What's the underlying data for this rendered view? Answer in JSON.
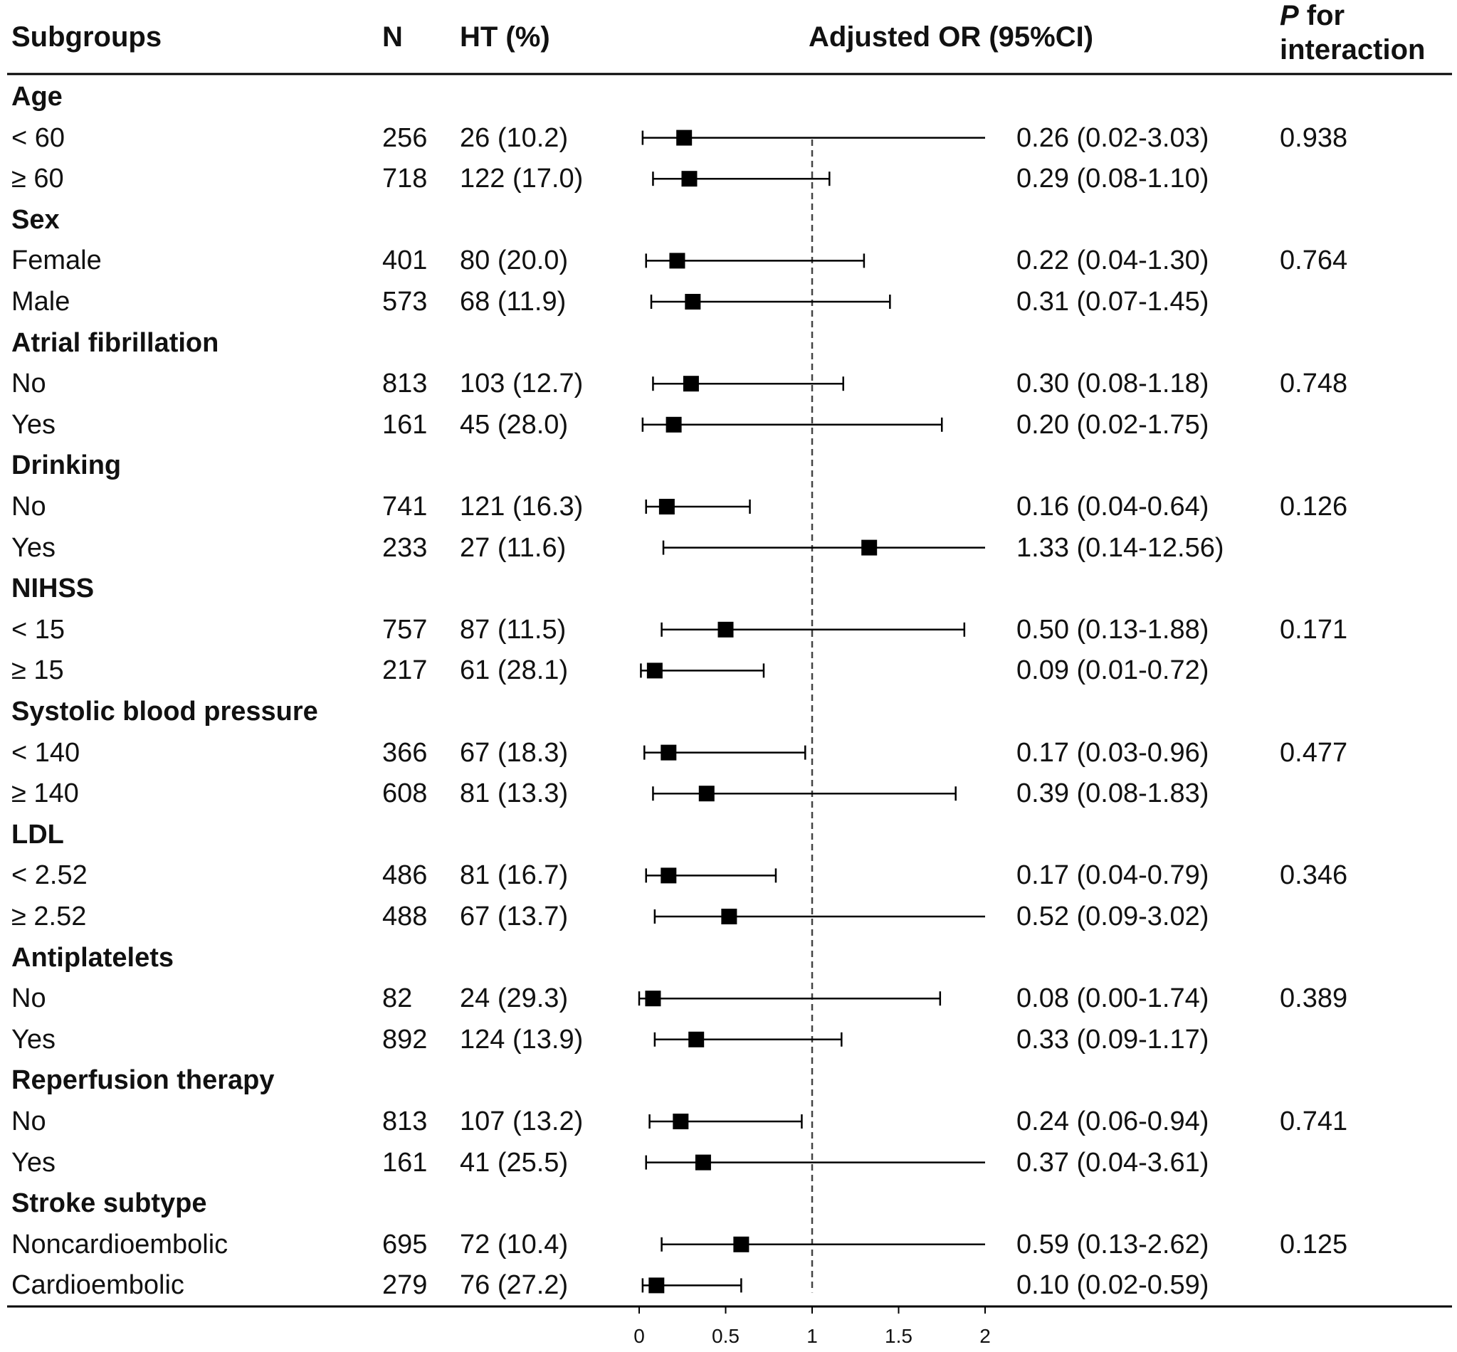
{
  "headers": {
    "subgroups": "Subgroups",
    "n": "N",
    "ht": "HT (%)",
    "or": "Adjusted OR (95%CI)",
    "p_italic": "P",
    "p_rest": " for",
    "p_line2": "interaction"
  },
  "chart_data": {
    "type": "forest",
    "xlim": [
      0,
      2
    ],
    "ticks": [
      "0",
      "0.5",
      "1",
      "1.5",
      "2"
    ],
    "tick_values": [
      0,
      0.5,
      1,
      1.5,
      2
    ],
    "reference_line": 1,
    "rows": [
      {
        "kind": "group",
        "label": "Age"
      },
      {
        "kind": "sub",
        "label": "< 60",
        "n": "256",
        "ht": "26 (10.2)",
        "or": 0.26,
        "lo": 0.02,
        "hi": 3.03,
        "or_text": "0.26 (0.02-3.03)",
        "p": "0.938"
      },
      {
        "kind": "sub",
        "label": "≥ 60",
        "n": "718",
        "ht": "122 (17.0)",
        "or": 0.29,
        "lo": 0.08,
        "hi": 1.1,
        "or_text": "0.29 (0.08-1.10)",
        "p": ""
      },
      {
        "kind": "group",
        "label": "Sex"
      },
      {
        "kind": "sub",
        "label": "Female",
        "n": "401",
        "ht": "80 (20.0)",
        "or": 0.22,
        "lo": 0.04,
        "hi": 1.3,
        "or_text": "0.22 (0.04-1.30)",
        "p": "0.764"
      },
      {
        "kind": "sub",
        "label": "Male",
        "n": "573",
        "ht": "68 (11.9)",
        "or": 0.31,
        "lo": 0.07,
        "hi": 1.45,
        "or_text": "0.31 (0.07-1.45)",
        "p": ""
      },
      {
        "kind": "group",
        "label": "Atrial fibrillation"
      },
      {
        "kind": "sub",
        "label": "No",
        "n": "813",
        "ht": "103 (12.7)",
        "or": 0.3,
        "lo": 0.08,
        "hi": 1.18,
        "or_text": "0.30 (0.08-1.18)",
        "p": "0.748"
      },
      {
        "kind": "sub",
        "label": "Yes",
        "n": "161",
        "ht": "45 (28.0)",
        "or": 0.2,
        "lo": 0.02,
        "hi": 1.75,
        "or_text": "0.20 (0.02-1.75)",
        "p": ""
      },
      {
        "kind": "group",
        "label": "Drinking"
      },
      {
        "kind": "sub",
        "label": "No",
        "n": "741",
        "ht": "121 (16.3)",
        "or": 0.16,
        "lo": 0.04,
        "hi": 0.64,
        "or_text": "0.16 (0.04-0.64)",
        "p": "0.126"
      },
      {
        "kind": "sub",
        "label": "Yes",
        "n": "233",
        "ht": "27 (11.6)",
        "or": 1.33,
        "lo": 0.14,
        "hi": 12.56,
        "or_text": "1.33 (0.14-12.56)",
        "p": ""
      },
      {
        "kind": "group",
        "label": "NIHSS"
      },
      {
        "kind": "sub",
        "label": "< 15",
        "n": "757",
        "ht": "87 (11.5)",
        "or": 0.5,
        "lo": 0.13,
        "hi": 1.88,
        "or_text": "0.50 (0.13-1.88)",
        "p": "0.171"
      },
      {
        "kind": "sub",
        "label": "≥ 15",
        "n": "217",
        "ht": "61 (28.1)",
        "or": 0.09,
        "lo": 0.01,
        "hi": 0.72,
        "or_text": "0.09 (0.01-0.72)",
        "p": ""
      },
      {
        "kind": "group",
        "label": "Systolic blood pressure"
      },
      {
        "kind": "sub",
        "label": "< 140",
        "n": "366",
        "ht": "67 (18.3)",
        "or": 0.17,
        "lo": 0.03,
        "hi": 0.96,
        "or_text": "0.17 (0.03-0.96)",
        "p": "0.477"
      },
      {
        "kind": "sub",
        "label": "≥ 140",
        "n": "608",
        "ht": "81 (13.3)",
        "or": 0.39,
        "lo": 0.08,
        "hi": 1.83,
        "or_text": "0.39 (0.08-1.83)",
        "p": ""
      },
      {
        "kind": "group",
        "label": "LDL"
      },
      {
        "kind": "sub",
        "label": "< 2.52",
        "n": "486",
        "ht": "81 (16.7)",
        "or": 0.17,
        "lo": 0.04,
        "hi": 0.79,
        "or_text": "0.17 (0.04-0.79)",
        "p": "0.346"
      },
      {
        "kind": "sub",
        "label": "≥ 2.52",
        "n": "488",
        "ht": "67 (13.7)",
        "or": 0.52,
        "lo": 0.09,
        "hi": 3.02,
        "or_text": "0.52 (0.09-3.02)",
        "p": ""
      },
      {
        "kind": "group",
        "label": "Antiplatelets"
      },
      {
        "kind": "sub",
        "label": "No",
        "n": "82",
        "ht": "24 (29.3)",
        "or": 0.08,
        "lo": 0.0,
        "hi": 1.74,
        "or_text": "0.08 (0.00-1.74)",
        "p": "0.389"
      },
      {
        "kind": "sub",
        "label": "Yes",
        "n": "892",
        "ht": "124 (13.9)",
        "or": 0.33,
        "lo": 0.09,
        "hi": 1.17,
        "or_text": "0.33 (0.09-1.17)",
        "p": ""
      },
      {
        "kind": "group",
        "label": "Reperfusion therapy"
      },
      {
        "kind": "sub",
        "label": "No",
        "n": "813",
        "ht": "107 (13.2)",
        "or": 0.24,
        "lo": 0.06,
        "hi": 0.94,
        "or_text": "0.24 (0.06-0.94)",
        "p": "0.741"
      },
      {
        "kind": "sub",
        "label": "Yes",
        "n": "161",
        "ht": "41 (25.5)",
        "or": 0.37,
        "lo": 0.04,
        "hi": 3.61,
        "or_text": "0.37 (0.04-3.61)",
        "p": ""
      },
      {
        "kind": "group",
        "label": "Stroke subtype"
      },
      {
        "kind": "sub",
        "label": "Noncardioembolic",
        "n": "695",
        "ht": "72 (10.4)",
        "or": 0.59,
        "lo": 0.13,
        "hi": 2.62,
        "or_text": "0.59 (0.13-2.62)",
        "p": "0.125"
      },
      {
        "kind": "sub",
        "label": "Cardioembolic",
        "n": "279",
        "ht": "76 (27.2)",
        "or": 0.1,
        "lo": 0.02,
        "hi": 0.59,
        "or_text": "0.10 (0.02-0.59)",
        "p": ""
      }
    ]
  }
}
